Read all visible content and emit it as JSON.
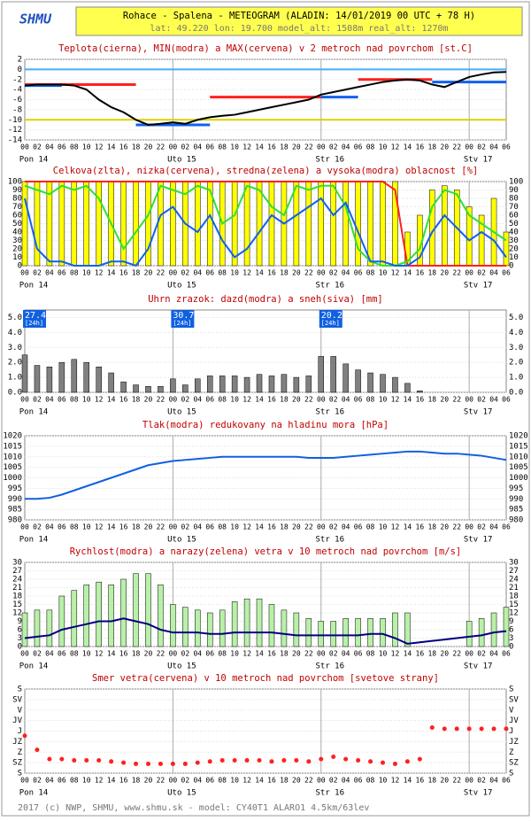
{
  "header": {
    "logo": "SHMU",
    "title": "Rohace - Spalena - METEOGRAM (ALADIN: 14/01/2019 00 UTC + 78 H)",
    "subtitle": "lat: 49.220  lon: 19.700  model_alt: 1508m  real_alt: 1270m"
  },
  "footer": "2017 (c) NWP, SHMU, www.shmu.sk - model: CY40T1 ALARO1 4.5km/63lev",
  "time": {
    "xlim": [
      0,
      78
    ],
    "categories": [
      "00",
      "02",
      "04",
      "06",
      "08",
      "10",
      "12",
      "14",
      "16",
      "18",
      "20",
      "22",
      "00",
      "02",
      "04",
      "06",
      "08",
      "10",
      "12",
      "14",
      "16",
      "18",
      "20",
      "22",
      "00",
      "02",
      "04",
      "06",
      "08",
      "10",
      "12",
      "14",
      "16",
      "18",
      "20",
      "22",
      "00",
      "02",
      "04",
      "06"
    ],
    "days": [
      "Pon 14",
      "Uto 15",
      "Str 16",
      "Stv 17"
    ]
  },
  "chart_data": [
    {
      "type": "line",
      "title": "Teplota(cierna), MIN(modra) a MAX(cervena) v 2 metroch nad povrchom [st.C]",
      "ylim": [
        -14,
        2
      ],
      "yticks": [
        2,
        0,
        -2,
        -4,
        -6,
        -8,
        -10,
        -12,
        -14
      ],
      "right_labels": false,
      "reference_lines": [
        {
          "value": 0,
          "color": "#40b0ff"
        },
        {
          "value": -10,
          "color": "#e0d000"
        }
      ],
      "series": [
        {
          "type": "segments",
          "color": "#ff2020",
          "segments": [
            {
              "from": 0,
              "to": 18,
              "value": -3
            },
            {
              "from": 30,
              "to": 48,
              "value": -5.5
            },
            {
              "from": 54,
              "to": 66,
              "value": -2
            }
          ]
        },
        {
          "type": "segments",
          "color": "#1060f0",
          "segments": [
            {
              "from": 0,
              "to": 6,
              "value": -3.2
            },
            {
              "from": 18,
              "to": 30,
              "value": -11
            },
            {
              "from": 48,
              "to": 54,
              "value": -5.5
            },
            {
              "from": 66,
              "to": 78,
              "value": -2.5
            }
          ]
        },
        {
          "type": "line",
          "color": "#000000",
          "values": [
            -3.2,
            -3,
            -3,
            -3,
            -3.2,
            -4,
            -6,
            -7.5,
            -8.5,
            -10,
            -11,
            -10.8,
            -10.5,
            -10.8,
            -10,
            -9.5,
            -9.2,
            -9,
            -8.5,
            -8,
            -7.5,
            -7,
            -6.5,
            -6,
            -5,
            -4.5,
            -4,
            -3.5,
            -3,
            -2.5,
            -2.2,
            -2,
            -2.2,
            -3,
            -3.5,
            -2.5,
            -1.5,
            -1,
            -0.6,
            -0.5
          ]
        }
      ]
    },
    {
      "type": "bar",
      "title": "Celkova(zlta), nizka(cervena), stredna(zelena) a vysoka(modra) oblacnost [%]",
      "ylim": [
        0,
        100
      ],
      "yticks": [
        0,
        10,
        20,
        30,
        40,
        50,
        60,
        70,
        80,
        90,
        100
      ],
      "right_labels": true,
      "series": [
        {
          "type": "bar",
          "color": "#ffff00",
          "values": [
            100,
            100,
            100,
            100,
            100,
            100,
            100,
            100,
            100,
            100,
            100,
            100,
            100,
            100,
            100,
            100,
            100,
            100,
            100,
            100,
            100,
            100,
            100,
            100,
            100,
            100,
            100,
            100,
            100,
            100,
            100,
            40,
            60,
            90,
            95,
            90,
            70,
            60,
            80,
            40
          ]
        },
        {
          "type": "line",
          "color": "#ff2020",
          "values": [
            100,
            100,
            100,
            100,
            100,
            100,
            100,
            100,
            100,
            100,
            100,
            100,
            100,
            100,
            100,
            100,
            100,
            100,
            100,
            100,
            100,
            100,
            100,
            100,
            100,
            100,
            100,
            100,
            100,
            100,
            90,
            0,
            0,
            0,
            0,
            0,
            0,
            0,
            0,
            0
          ]
        },
        {
          "type": "line",
          "color": "#30e030",
          "values": [
            95,
            90,
            85,
            95,
            90,
            95,
            80,
            50,
            20,
            40,
            60,
            95,
            90,
            85,
            95,
            90,
            50,
            60,
            95,
            90,
            70,
            60,
            95,
            90,
            95,
            95,
            70,
            20,
            5,
            0,
            0,
            5,
            20,
            70,
            90,
            85,
            60,
            50,
            40,
            30
          ]
        },
        {
          "type": "line",
          "color": "#1060f0",
          "values": [
            80,
            20,
            5,
            5,
            0,
            0,
            0,
            5,
            5,
            0,
            20,
            60,
            70,
            50,
            40,
            60,
            30,
            10,
            20,
            40,
            60,
            50,
            60,
            70,
            80,
            60,
            75,
            40,
            5,
            5,
            0,
            0,
            10,
            40,
            60,
            45,
            30,
            40,
            30,
            10
          ]
        }
      ]
    },
    {
      "type": "bar",
      "title": "Uhrn zrazok: dazd(modra) a sneh(siva) [mm]",
      "ylim": [
        0,
        5.5
      ],
      "yticks": [
        {
          "value": 0,
          "label": "0.0"
        },
        {
          "value": 1,
          "label": "1.0"
        },
        {
          "value": 2,
          "label": "2.0"
        },
        {
          "value": 3,
          "label": "3.0"
        },
        {
          "value": 4,
          "label": "4.0"
        },
        {
          "value": 5,
          "label": "5.0"
        }
      ],
      "right_labels": true,
      "totals": [
        27.4,
        30.7,
        20.2
      ],
      "totals_unit": "[24h]",
      "series": [
        {
          "type": "bar",
          "color": "#808080",
          "values": [
            2.5,
            1.8,
            1.7,
            2.0,
            2.2,
            2.0,
            1.7,
            1.3,
            0.7,
            0.5,
            0.4,
            0.4,
            0.9,
            0.5,
            0.9,
            1.1,
            1.1,
            1.1,
            1.0,
            1.2,
            1.1,
            1.2,
            1.0,
            1.1,
            2.4,
            2.4,
            1.9,
            1.5,
            1.3,
            1.2,
            1.0,
            0.6,
            0.1,
            0,
            0,
            0,
            0,
            0,
            0,
            0
          ]
        }
      ]
    },
    {
      "type": "line",
      "title": "Tlak(modra) redukovany na hladinu mora [hPa]",
      "ylim": [
        980,
        1020
      ],
      "yticks": [
        980,
        985,
        990,
        995,
        1000,
        1005,
        1010,
        1015,
        1020
      ],
      "right_labels": true,
      "series": [
        {
          "type": "line",
          "color": "#1060e0",
          "values": [
            990,
            990,
            990.5,
            992,
            994,
            996,
            998,
            1000,
            1002,
            1004,
            1006,
            1007,
            1008,
            1008.5,
            1009,
            1009.5,
            1010,
            1010,
            1010,
            1010,
            1010,
            1010,
            1010,
            1009.5,
            1009.5,
            1009.5,
            1010,
            1010.5,
            1011,
            1011.5,
            1012,
            1012.5,
            1012.5,
            1012,
            1011.5,
            1011.5,
            1011,
            1010.5,
            1009.5,
            1008.5
          ]
        }
      ]
    },
    {
      "type": "bar",
      "title": "Rychlost(modra) a narazy(zelena) vetra v 10 metroch nad povrchom [m/s]",
      "ylim": [
        0,
        30
      ],
      "yticks": [
        0,
        3,
        6,
        9,
        12,
        15,
        18,
        21,
        24,
        27,
        30
      ],
      "right_labels": true,
      "series": [
        {
          "type": "bar",
          "color": "#b8f0a8",
          "values": [
            12,
            13,
            13,
            18,
            20,
            22,
            23,
            22,
            24,
            26,
            26,
            22,
            15,
            14,
            13,
            12,
            13,
            16,
            17,
            17,
            15,
            13,
            12,
            10,
            9,
            9,
            10,
            10,
            10,
            10,
            12,
            12,
            0,
            0,
            0,
            0,
            9,
            10,
            12,
            14
          ]
        },
        {
          "type": "line",
          "color": "#000080",
          "values": [
            3,
            3.5,
            4,
            6,
            7,
            8,
            9,
            9,
            10,
            9,
            8,
            6,
            5,
            5,
            5,
            4.5,
            4.5,
            5,
            5,
            5,
            5,
            4.5,
            4,
            4,
            4,
            4,
            4,
            4,
            4.5,
            4.5,
            3,
            1,
            1.5,
            2,
            2.5,
            3,
            3.5,
            4,
            5,
            5.5
          ]
        }
      ]
    },
    {
      "type": "scatter",
      "title": "Smer vetra(cervena) v 10 metroch nad povrchom [svetove strany]",
      "ylim": [
        360,
        0
      ],
      "yticks": [
        {
          "value": 360,
          "label": "S"
        },
        {
          "value": 315,
          "label": "SZ"
        },
        {
          "value": 270,
          "label": "Z"
        },
        {
          "value": 225,
          "label": "JZ"
        },
        {
          "value": 180,
          "label": "J"
        },
        {
          "value": 135,
          "label": "JV"
        },
        {
          "value": 90,
          "label": "V"
        },
        {
          "value": 45,
          "label": "SV"
        },
        {
          "value": 0,
          "label": "S"
        }
      ],
      "right_labels": true,
      "series": [
        {
          "type": "dots",
          "color": "#ff2020",
          "values": [
            200,
            260,
            300,
            300,
            305,
            305,
            305,
            310,
            315,
            320,
            320,
            320,
            320,
            320,
            315,
            310,
            305,
            305,
            305,
            305,
            310,
            305,
            305,
            310,
            300,
            290,
            300,
            305,
            310,
            315,
            320,
            310,
            300,
            165,
            170,
            170,
            170,
            170,
            170,
            170
          ]
        }
      ]
    }
  ]
}
